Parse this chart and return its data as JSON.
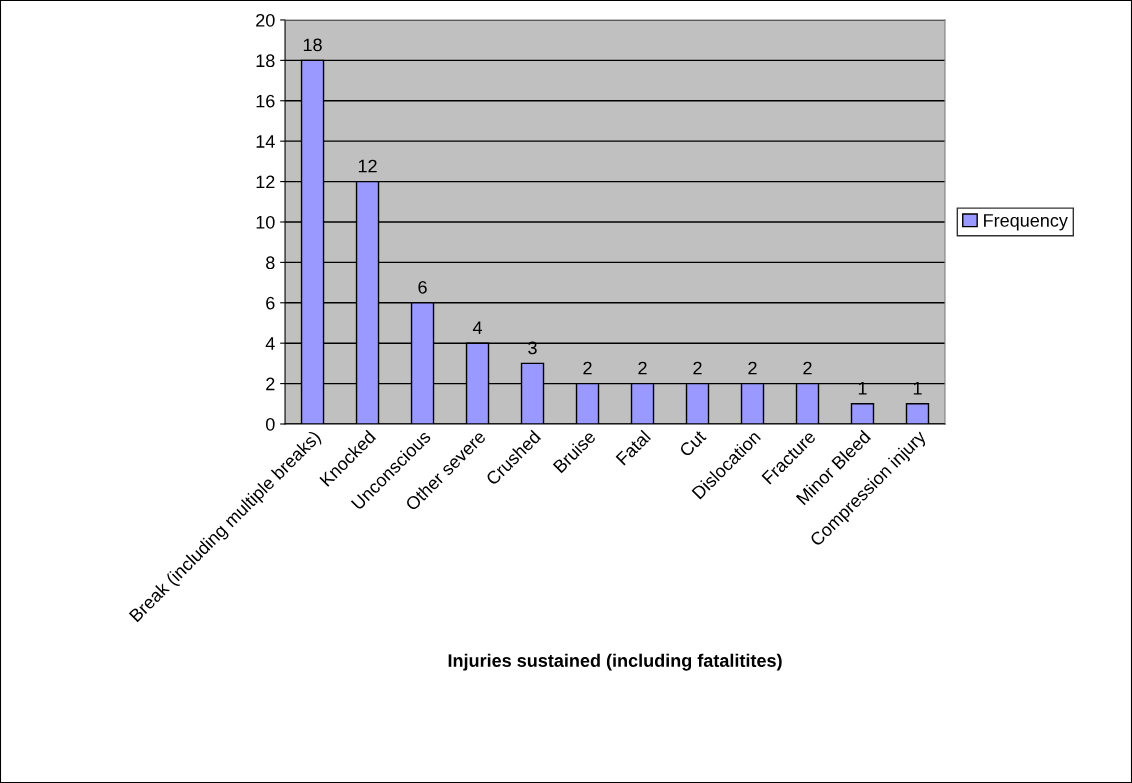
{
  "chart_data": {
    "type": "bar",
    "xlabel": "Injuries sustained (including fatalitites)",
    "categories": [
      "Break (including multiple breaks)",
      "Knocked",
      "Unconscious",
      "Other severe",
      "Crushed",
      "Bruise",
      "Fatal",
      "Cut",
      "Dislocation",
      "Fracture",
      "Minor Bleed",
      "Compression injury"
    ],
    "series": [
      {
        "name": "Frequency",
        "color": "#9999ff",
        "values": [
          18,
          12,
          6,
          4,
          3,
          2,
          2,
          2,
          2,
          2,
          1,
          1
        ]
      }
    ],
    "ylim": [
      0,
      20
    ],
    "yticks": [
      0,
      2,
      4,
      6,
      8,
      10,
      12,
      14,
      16,
      18,
      20
    ],
    "grid": "y",
    "legend": "right",
    "data_labels": true
  }
}
